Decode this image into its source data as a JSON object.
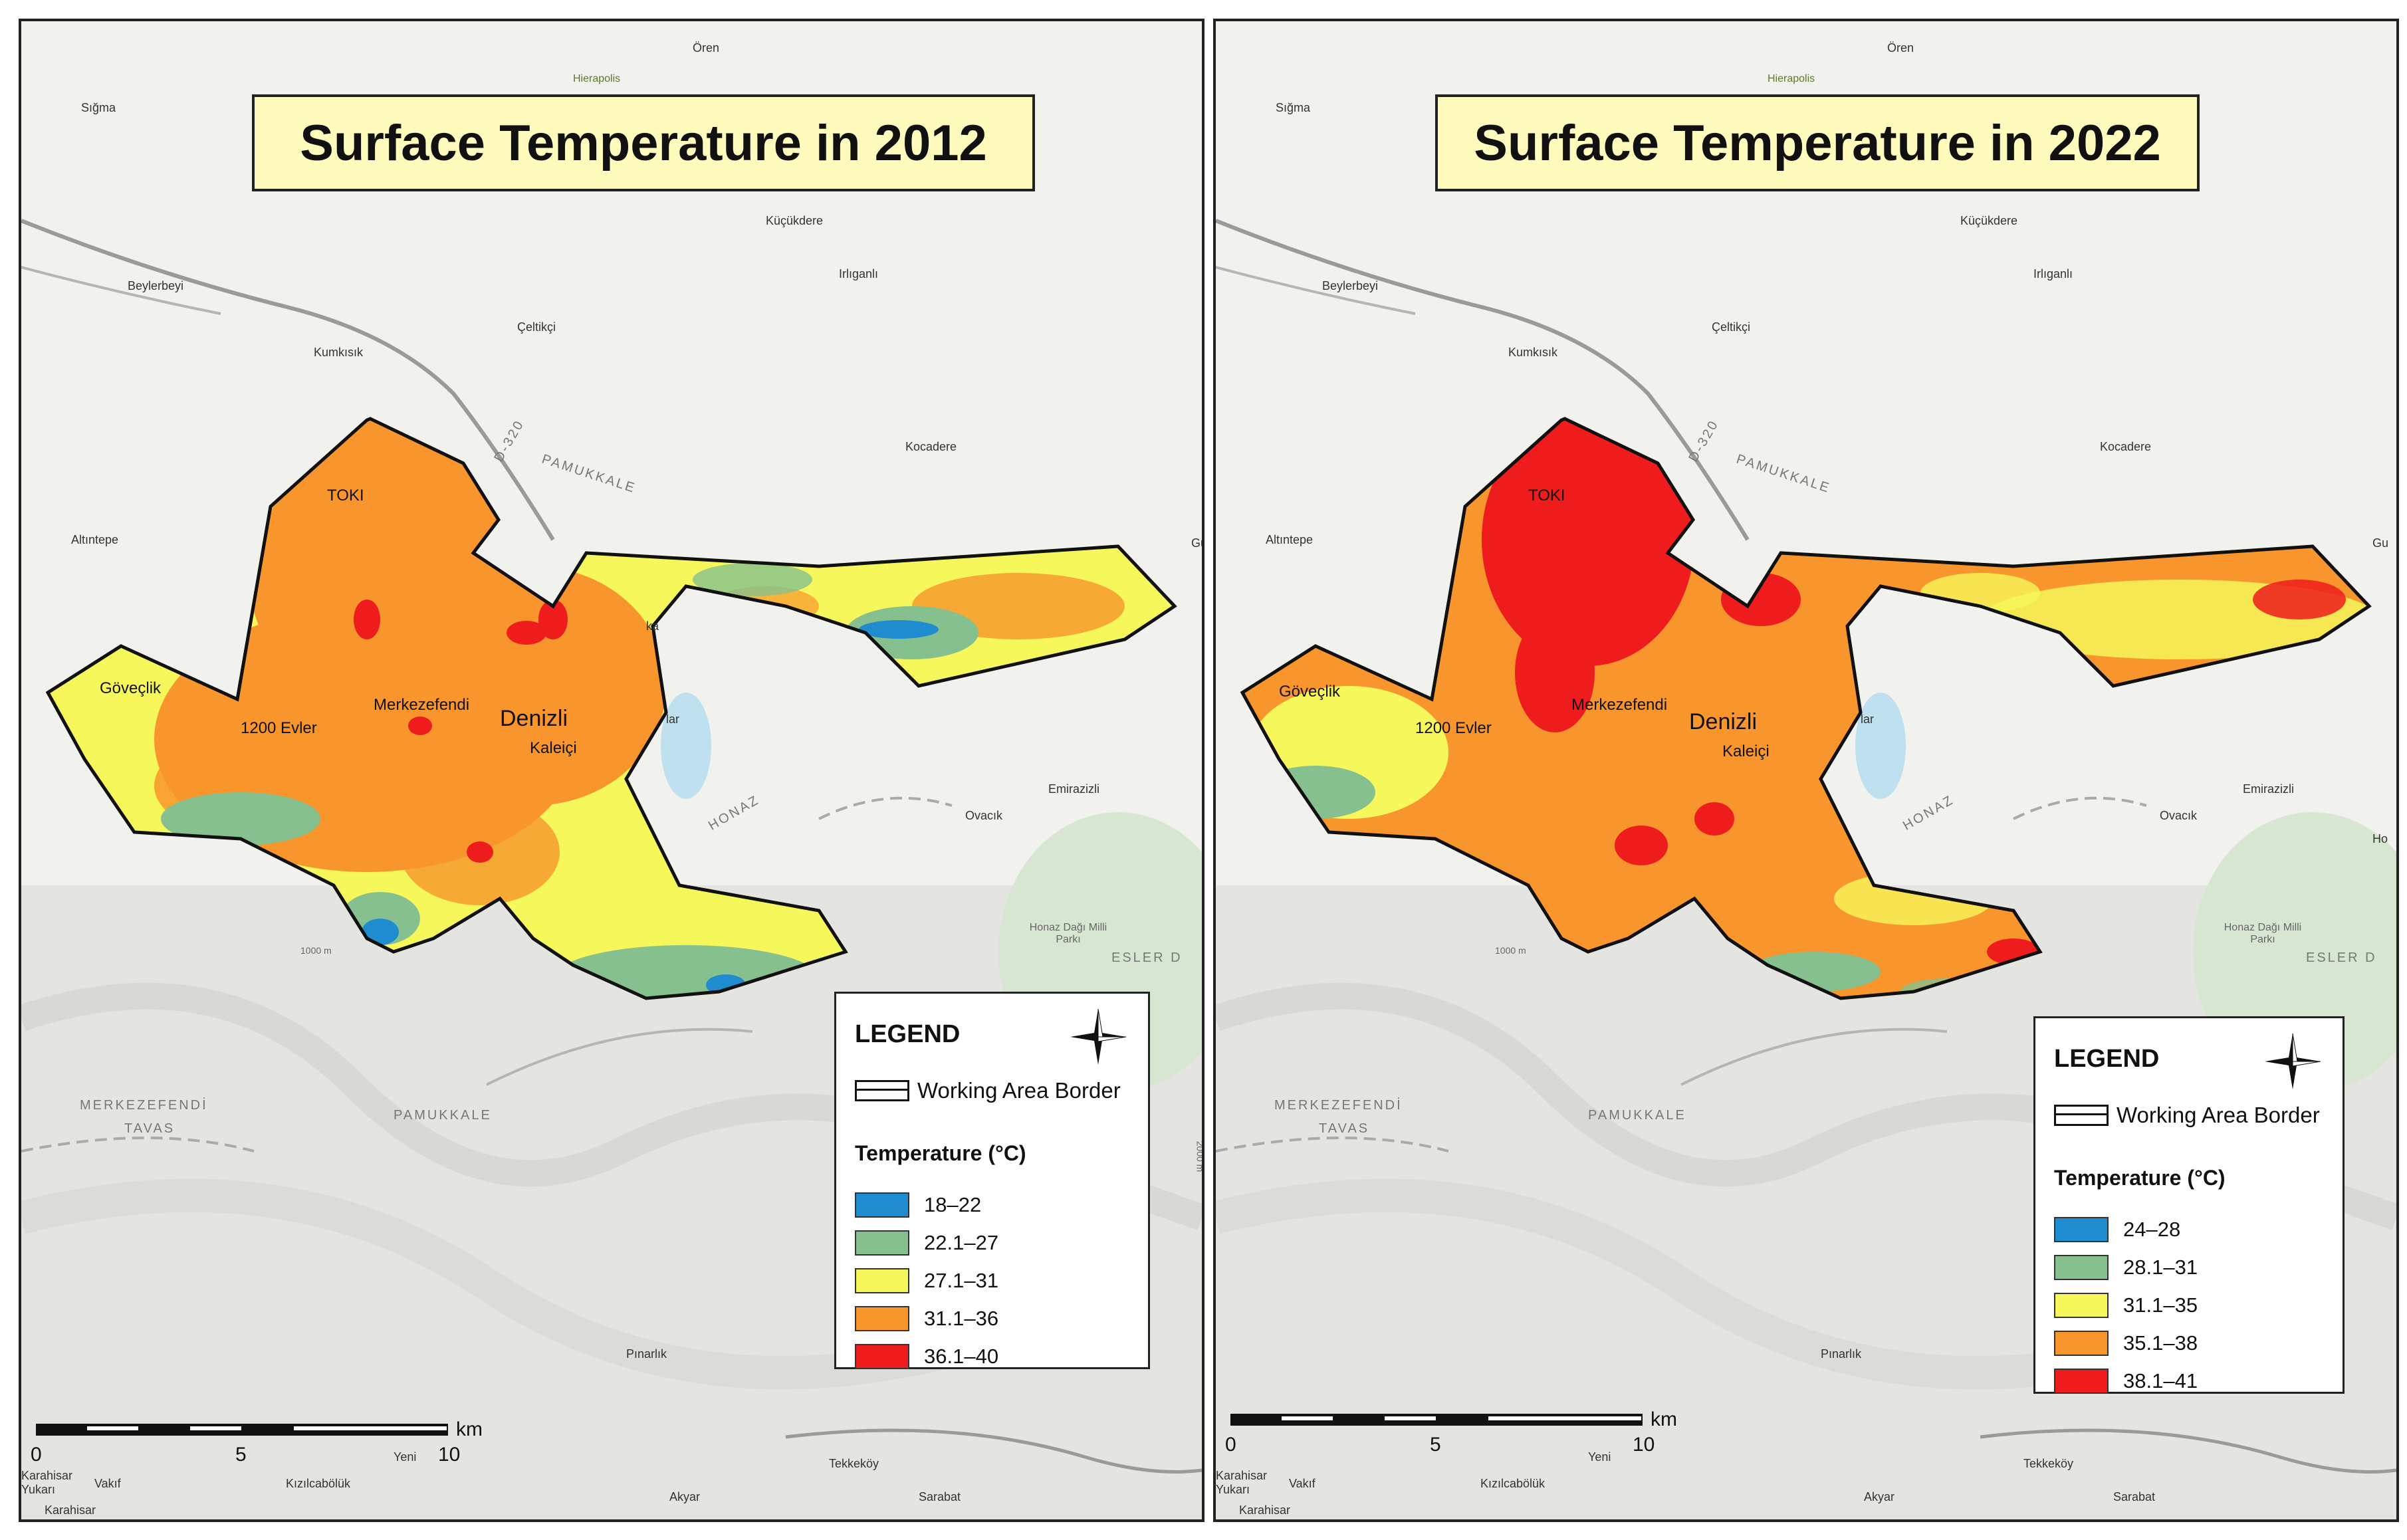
{
  "panels": [
    {
      "title": "Surface Temperature in 2012",
      "legend": {
        "title": "LEGEND",
        "border_label": "Working Area Border",
        "temp_title": "Temperature (°C)",
        "classes": [
          {
            "label": "18–22",
            "color": "#1f8ccf"
          },
          {
            "label": "22.1–27",
            "color": "#86c08f"
          },
          {
            "label": "27.1–31",
            "color": "#f6f75a"
          },
          {
            "label": "31.1–36",
            "color": "#f8952c"
          },
          {
            "label": "36.1–40",
            "color": "#ee1c1c"
          }
        ]
      },
      "scale": {
        "unit": "km",
        "ticks": [
          "0",
          "5",
          "10"
        ]
      }
    },
    {
      "title": "Surface Temperature in 2022",
      "legend": {
        "title": "LEGEND",
        "border_label": "Working Area Border",
        "temp_title": "Temperature (°C)",
        "classes": [
          {
            "label": "24–28",
            "color": "#1f8ccf"
          },
          {
            "label": "28.1–31",
            "color": "#86c08f"
          },
          {
            "label": "31.1–35",
            "color": "#f6f75a"
          },
          {
            "label": "35.1–38",
            "color": "#f8952c"
          },
          {
            "label": "38.1–41",
            "color": "#ee1c1c"
          }
        ]
      },
      "scale": {
        "unit": "km",
        "ticks": [
          "0",
          "5",
          "10"
        ]
      }
    }
  ],
  "places": {
    "oren": "Ören",
    "hierapolis": "Hierapolis",
    "sigma": "Sığma",
    "kucukdere": "Küçükdere",
    "irliganli": "Irlıganlı",
    "beylerbeyi": "Beylerbeyi",
    "celtikci": "Çeltikçi",
    "kumkisik": "Kumkısık",
    "d320": "D-320",
    "pamukkale": "PAMUKKALE",
    "kocadere": "Kocadere",
    "altintepe": "Altıntepe",
    "toki": "TOKI",
    "govecik": "Göveçlik",
    "evler": "1200 Evler",
    "merkezefendi": "Merkezefendi",
    "denizli": "Denizli",
    "kaleici": "Kaleiçi",
    "honaz": "HONAZ",
    "ovacik": "Ovacık",
    "emirazizli": "Emirazizli",
    "honaz_park": "Honaz Dağı Milli Parkı",
    "esler": "ESLER D",
    "merkezefendi_district": "MERKEZEFENDİ",
    "tavas": "TAVAS",
    "pamukkale2": "PAMUKKALE",
    "pinarlik": "Pınarlık",
    "tekkekoy": "Tekkeköy",
    "sarabat": "Sarabat",
    "akyar": "Akyar",
    "kizilcaboluk": "Kızılcabölük",
    "vakif": "Vakıf",
    "karahisar_yukari": "Karahisar Yukarı",
    "karahisar": "Karahisar",
    "yeni": "Yeni",
    "elev1000": "1000 m",
    "elev2000": "2000 m",
    "ho": "Ho",
    "gu": "Gu",
    "ka": "ka",
    "lar": "lar"
  }
}
